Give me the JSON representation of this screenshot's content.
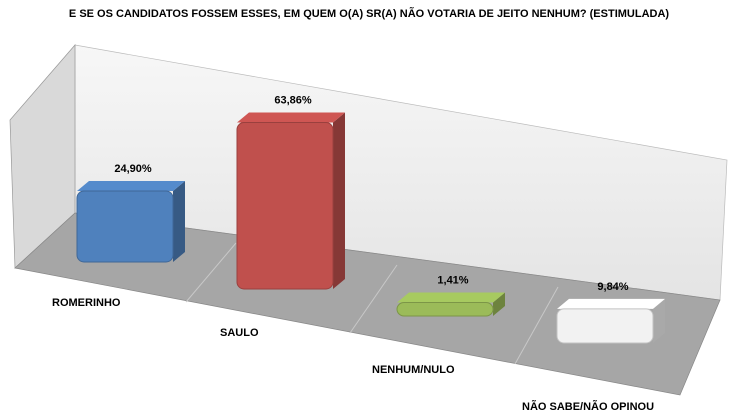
{
  "chart_data": {
    "type": "bar3d",
    "title": "E SE OS CANDIDATOS FOSSEM ESSES, EM QUEM O(A) SR(A) NÃO VOTARIA DE JEITO NENHUM? (ESTIMULADA)",
    "categories": [
      "ROMERINHO",
      "SAULO",
      "NENHUM/NULO",
      "NÃO SABE/NÃO OPINOU"
    ],
    "values": [
      24.9,
      63.86,
      1.41,
      9.84
    ],
    "value_labels": [
      "24,90%",
      "63,86%",
      "1,41%",
      "9,84%"
    ],
    "colors": [
      "#4f81bd",
      "#c0504d",
      "#9bbb59",
      "#f2f2f2"
    ]
  }
}
